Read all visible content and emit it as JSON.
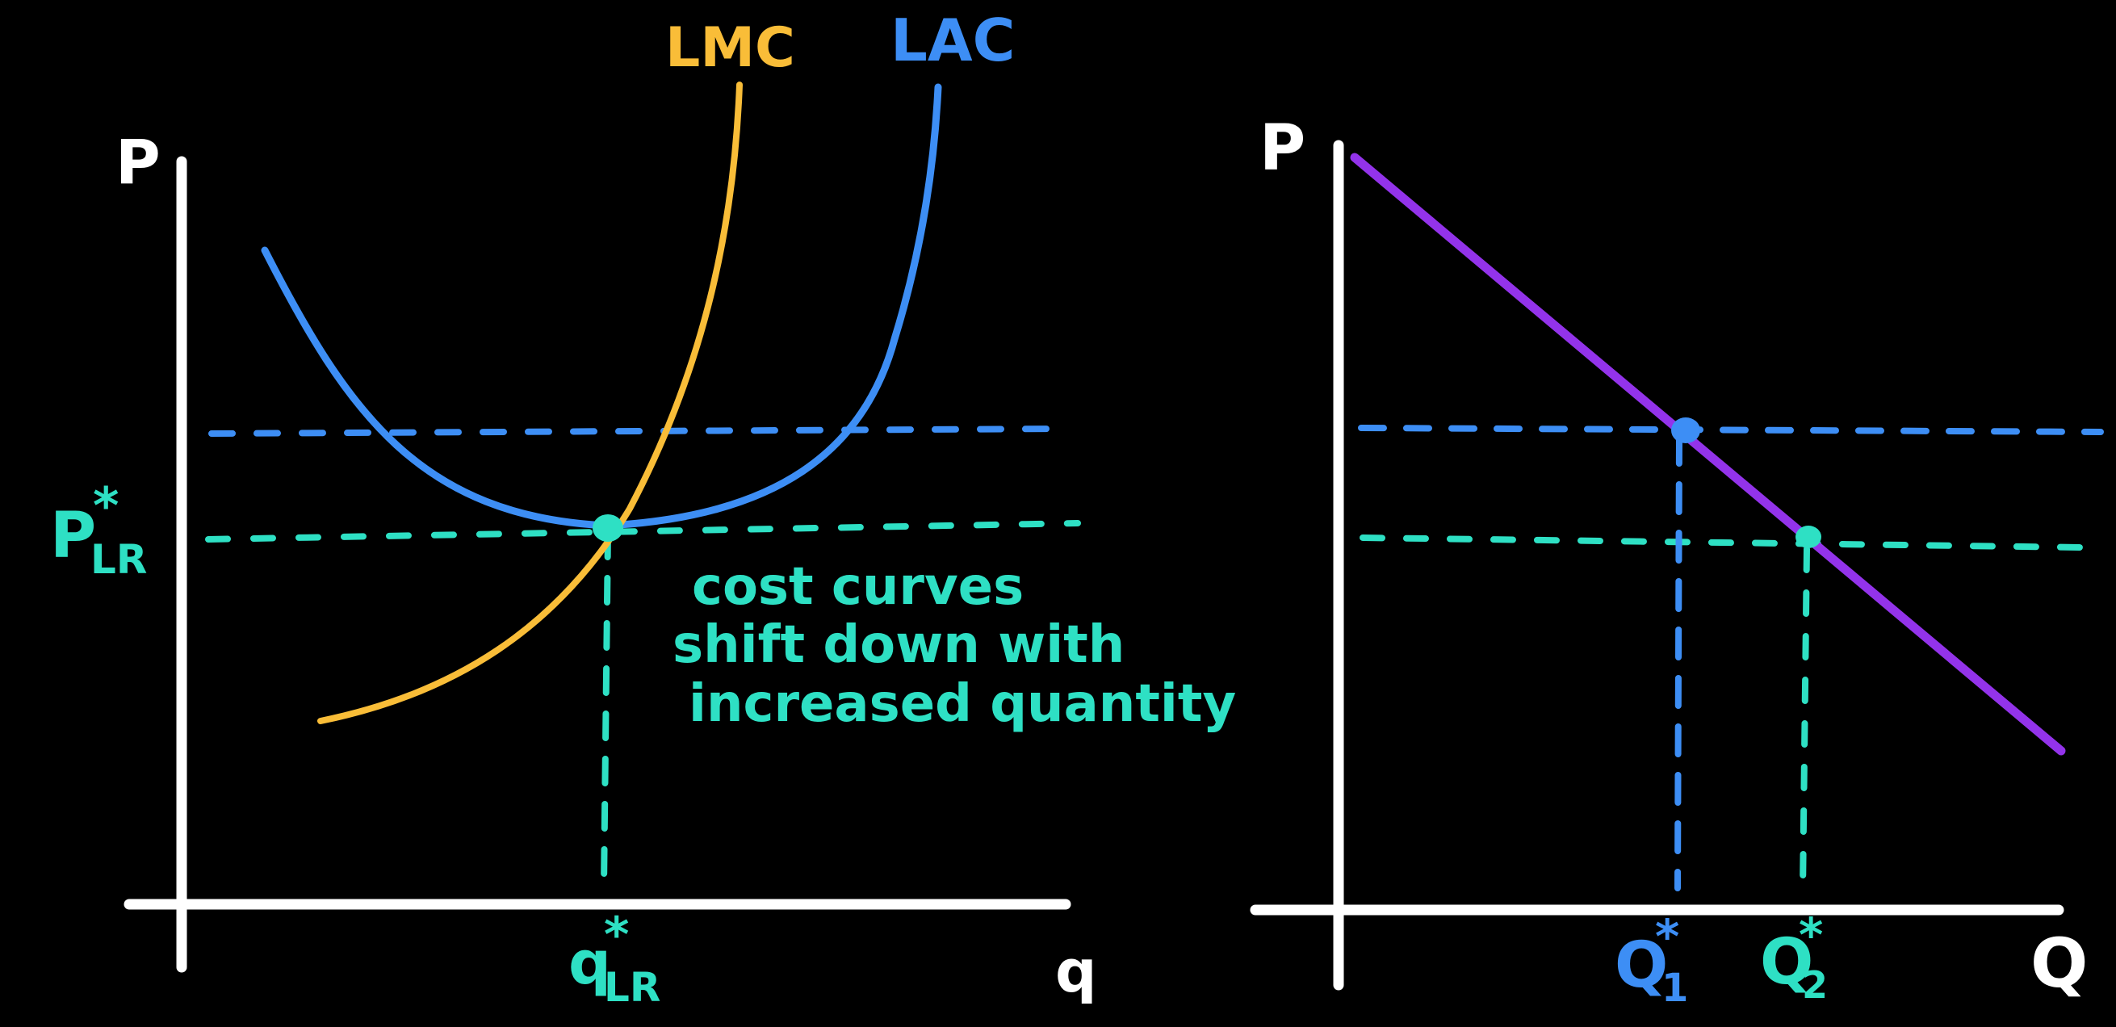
{
  "colors": {
    "background": "#000000",
    "axis": "#ffffff",
    "lac": "#3d8ef5",
    "lmc": "#f9bd38",
    "demand": "#9333ea",
    "teal": "#2ee0c4",
    "blue_dash": "#3d8ef5"
  },
  "left_panel": {
    "y_axis_label": "P",
    "x_axis_label": "q",
    "lmc_label": "LMC",
    "lac_label": "LAC",
    "price_label": "P",
    "price_superscript": "*",
    "price_subscript": "LR",
    "quantity_label": "q",
    "quantity_superscript": "*",
    "quantity_subscript": "LR",
    "annotation_lines": [
      "cost curves",
      "shift down with",
      "increased quantity"
    ]
  },
  "right_panel": {
    "y_axis_label": "P",
    "x_axis_label": "Q",
    "q1_label": "Q",
    "q1_superscript": "*",
    "q1_subscript": "1",
    "q2_label": "Q",
    "q2_superscript": "*",
    "q2_subscript": "2"
  }
}
